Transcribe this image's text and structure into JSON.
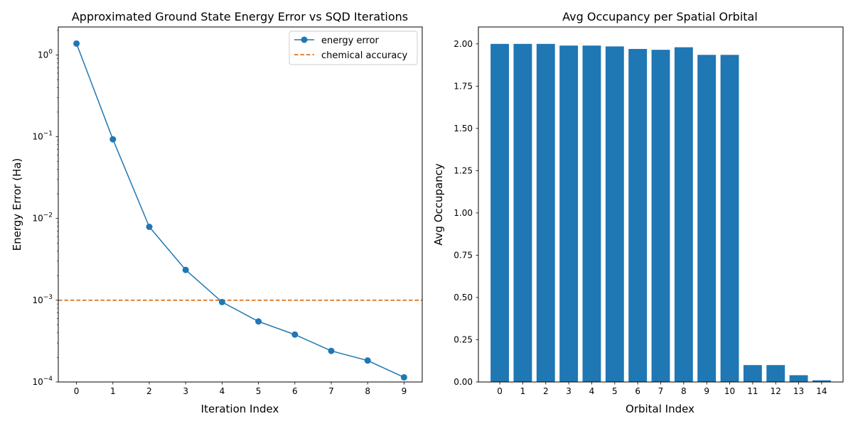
{
  "chart_data": [
    {
      "type": "line",
      "title": "Approximated Ground State Energy Error vs SQD Iterations",
      "xlabel": "Iteration Index",
      "ylabel": "Energy Error (Ha)",
      "yscale": "log",
      "ylim": [
        0.0001,
        2.2
      ],
      "xlim": [
        -0.5,
        9.5
      ],
      "x": [
        0,
        1,
        2,
        3,
        4,
        5,
        6,
        7,
        8,
        9
      ],
      "x_tick_labels": [
        "0",
        "1",
        "2",
        "3",
        "4",
        "5",
        "6",
        "7",
        "8",
        "9"
      ],
      "y_ticks": [
        0.0001,
        0.001,
        0.01,
        0.1,
        1
      ],
      "y_tick_labels": [
        {
          "base": "10",
          "exp": "−4"
        },
        {
          "base": "10",
          "exp": "−3"
        },
        {
          "base": "10",
          "exp": "−2"
        },
        {
          "base": "10",
          "exp": "−1"
        },
        {
          "base": "10",
          "exp": "0"
        }
      ],
      "series": [
        {
          "name": "energy error",
          "color": "#1f77b4",
          "marker": "circle",
          "values": [
            1.38,
            0.093,
            0.0079,
            0.00235,
            0.00095,
            0.00055,
            0.00038,
            0.00024,
            0.000183,
            0.000114
          ]
        }
      ],
      "reference_lines": [
        {
          "name": "chemical accuracy",
          "y": 0.001,
          "color": "#d45f00",
          "style": "dashed"
        }
      ],
      "legend": "top-right",
      "grid": false
    },
    {
      "type": "bar",
      "title": "Avg Occupancy per Spatial Orbital",
      "xlabel": "Orbital Index",
      "ylabel": "Avg Occupancy",
      "color": "#1f77b4",
      "ylim": [
        0,
        2.1
      ],
      "categories": [
        "0",
        "1",
        "2",
        "3",
        "4",
        "5",
        "6",
        "7",
        "8",
        "9",
        "10",
        "11",
        "12",
        "13",
        "14"
      ],
      "values": [
        2.0,
        2.0,
        2.0,
        1.99,
        1.99,
        1.985,
        1.97,
        1.965,
        1.98,
        1.935,
        1.935,
        0.1,
        0.1,
        0.04,
        0.01
      ],
      "y_ticks": [
        0,
        0.25,
        0.5,
        0.75,
        1.0,
        1.25,
        1.5,
        1.75,
        2.0
      ],
      "y_tick_labels": [
        "0.00",
        "0.25",
        "0.50",
        "0.75",
        "1.00",
        "1.25",
        "1.50",
        "1.75",
        "2.00"
      ],
      "grid": false
    }
  ]
}
